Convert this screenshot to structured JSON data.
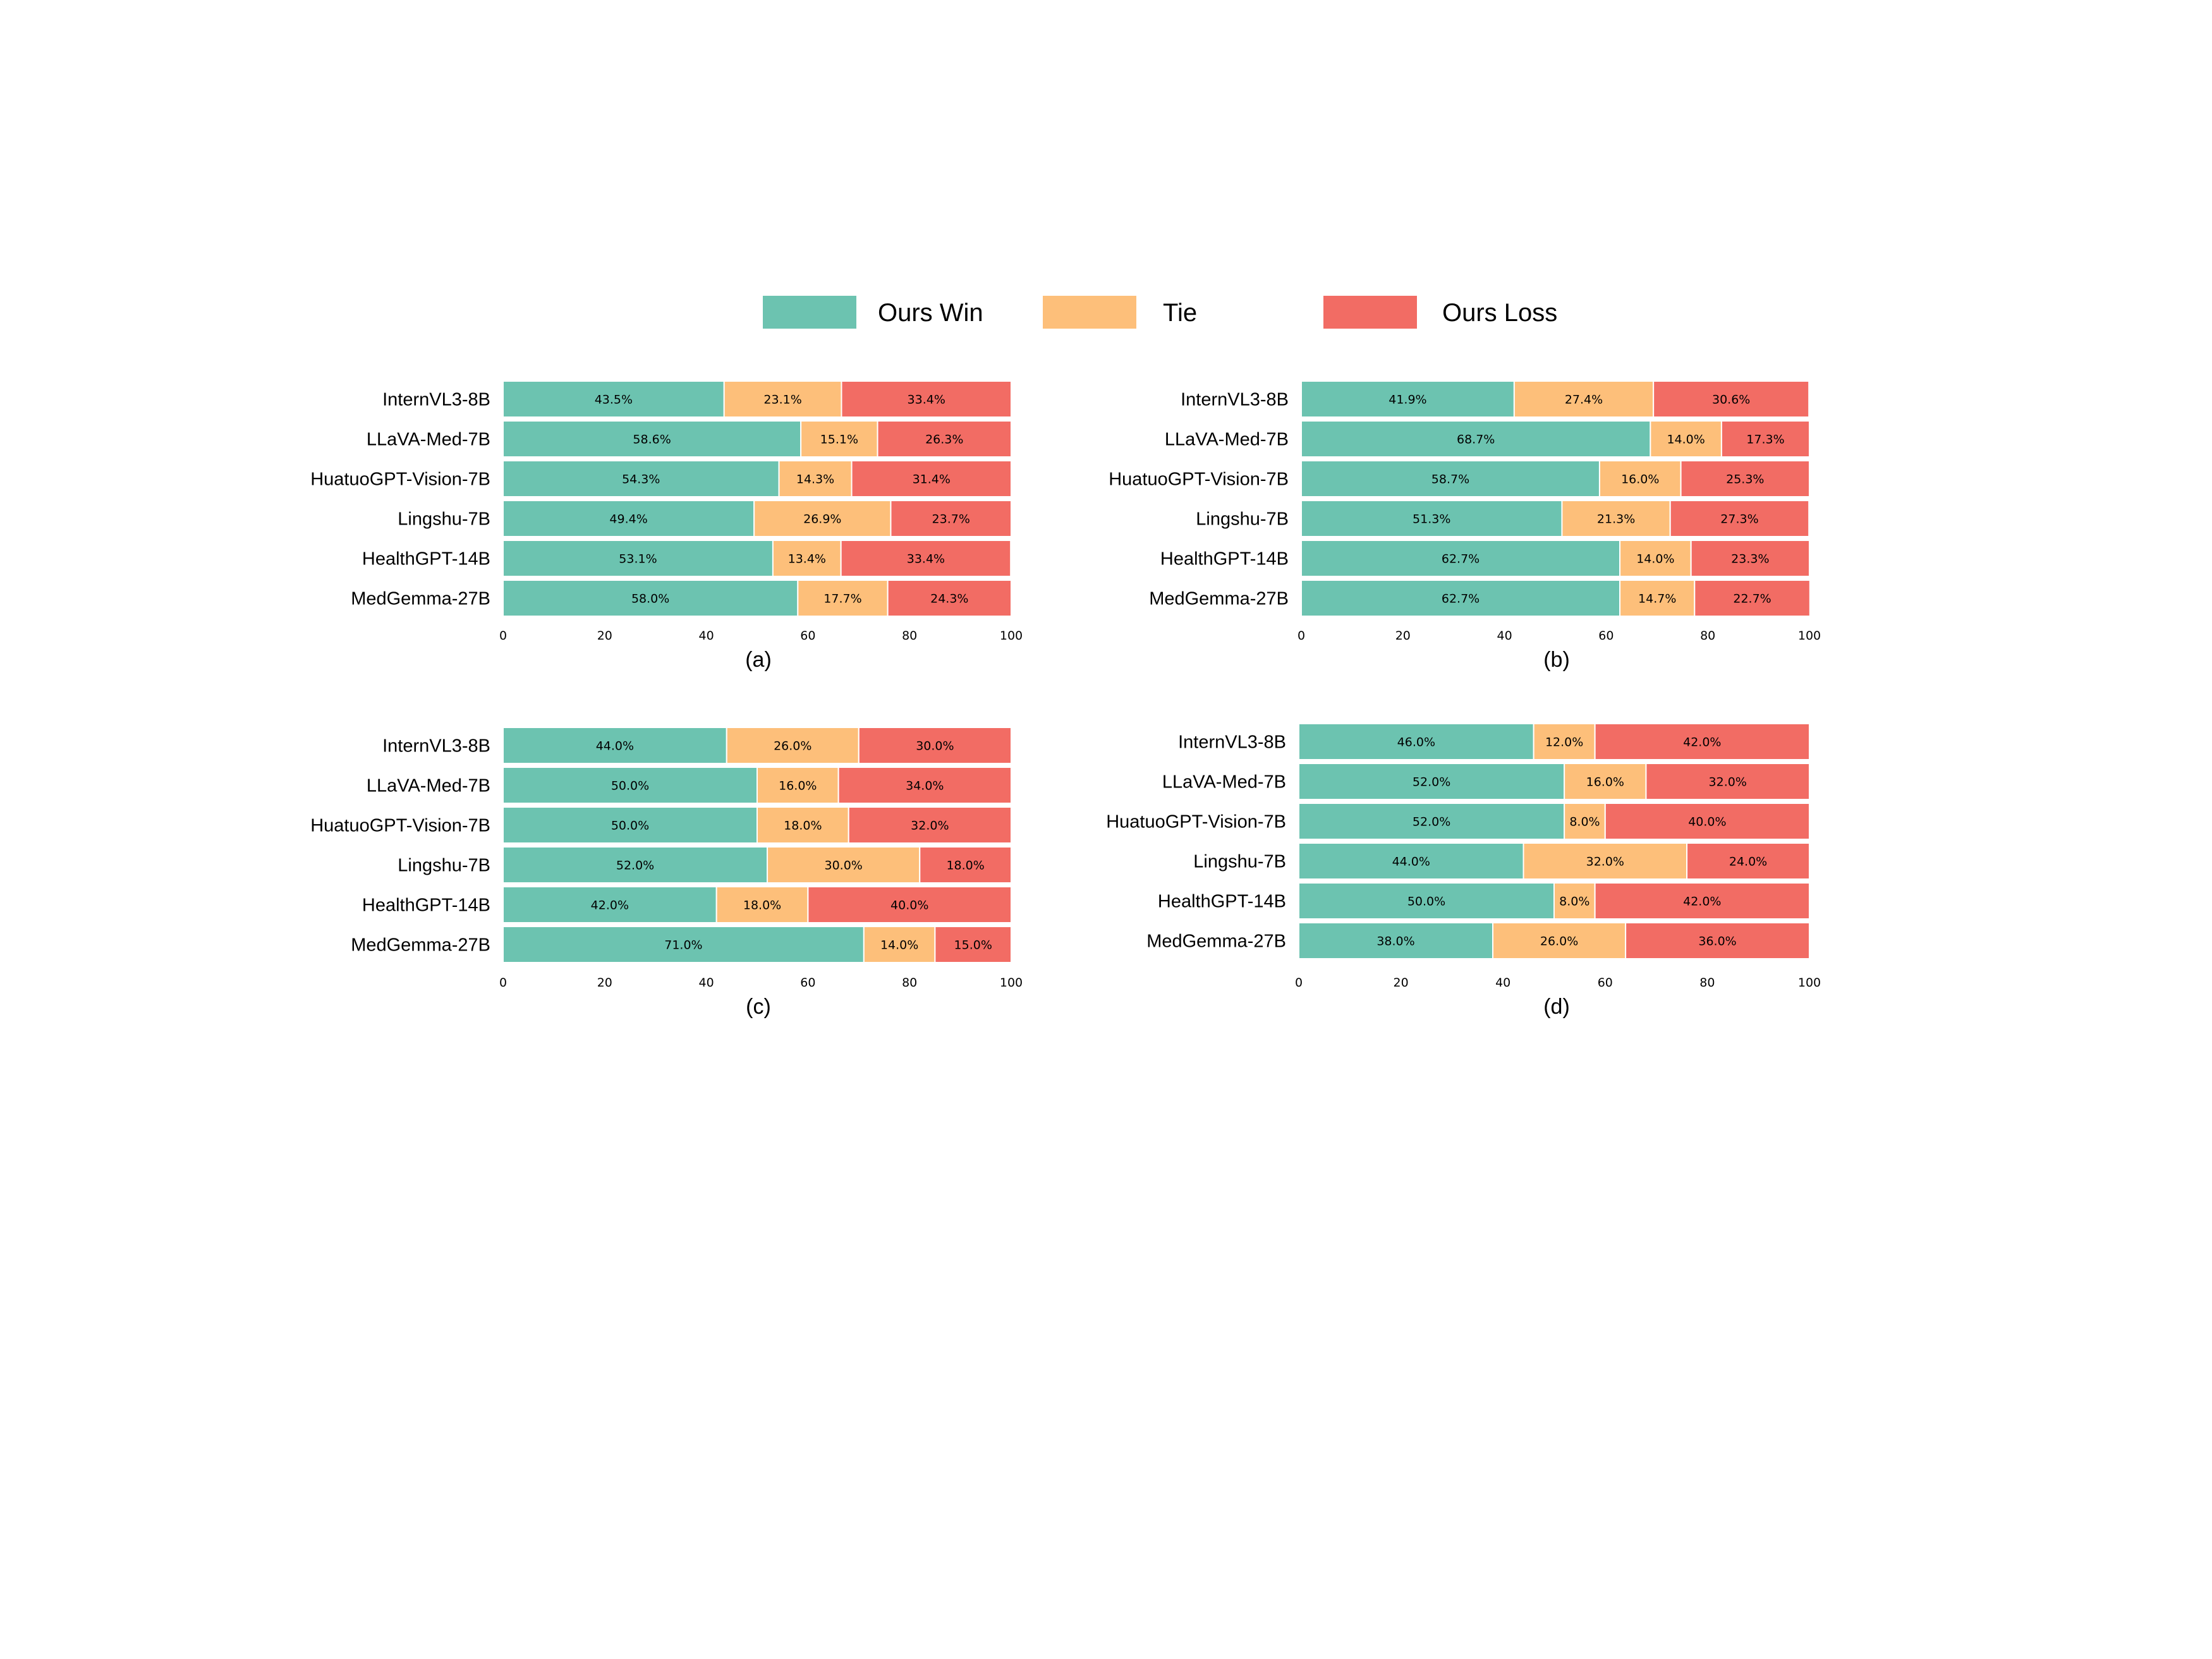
{
  "legend": {
    "items": [
      {
        "label": "Ours Win",
        "color": "#6cc3b0"
      },
      {
        "label": "Tie",
        "color": "#fdbf7a"
      },
      {
        "label": "Ours Loss",
        "color": "#f26c64"
      }
    ]
  },
  "chart_data": [
    {
      "type": "bar",
      "orientation": "horizontal",
      "stacked": true,
      "caption": "(a)",
      "categories": [
        "InternVL3-8B",
        "LLaVA-Med-7B",
        "HuatuoGPT-Vision-7B",
        "Lingshu-7B",
        "HealthGPT-14B",
        "MedGemma-27B"
      ],
      "series": [
        {
          "name": "Ours Win",
          "values": [
            43.5,
            58.6,
            54.3,
            49.4,
            53.1,
            58.0
          ]
        },
        {
          "name": "Tie",
          "values": [
            23.1,
            15.1,
            14.3,
            26.9,
            13.4,
            17.7
          ]
        },
        {
          "name": "Ours Loss",
          "values": [
            33.4,
            26.3,
            31.4,
            23.7,
            33.4,
            24.3
          ]
        }
      ],
      "xlim": [
        0,
        100
      ],
      "xticks": [
        "0",
        "20",
        "40",
        "60",
        "80",
        "100"
      ],
      "grid": false
    },
    {
      "type": "bar",
      "orientation": "horizontal",
      "stacked": true,
      "caption": "(b)",
      "categories": [
        "InternVL3-8B",
        "LLaVA-Med-7B",
        "HuatuoGPT-Vision-7B",
        "Lingshu-7B",
        "HealthGPT-14B",
        "MedGemma-27B"
      ],
      "series": [
        {
          "name": "Ours Win",
          "values": [
            41.9,
            68.7,
            58.7,
            51.3,
            62.7,
            62.7
          ]
        },
        {
          "name": "Tie",
          "values": [
            27.4,
            14.0,
            16.0,
            21.3,
            14.0,
            14.7
          ]
        },
        {
          "name": "Ours Loss",
          "values": [
            30.6,
            17.3,
            25.3,
            27.3,
            23.3,
            22.7
          ]
        }
      ],
      "xlim": [
        0,
        100
      ],
      "xticks": [
        "0",
        "20",
        "40",
        "60",
        "80",
        "100"
      ],
      "grid": false
    },
    {
      "type": "bar",
      "orientation": "horizontal",
      "stacked": true,
      "caption": "(c)",
      "categories": [
        "InternVL3-8B",
        "LLaVA-Med-7B",
        "HuatuoGPT-Vision-7B",
        "Lingshu-7B",
        "HealthGPT-14B",
        "MedGemma-27B"
      ],
      "series": [
        {
          "name": "Ours Win",
          "values": [
            44.0,
            50.0,
            50.0,
            52.0,
            42.0,
            71.0
          ]
        },
        {
          "name": "Tie",
          "values": [
            26.0,
            16.0,
            18.0,
            30.0,
            18.0,
            14.0
          ]
        },
        {
          "name": "Ours Loss",
          "values": [
            30.0,
            34.0,
            32.0,
            18.0,
            40.0,
            15.0
          ]
        }
      ],
      "xlim": [
        0,
        100
      ],
      "xticks": [
        "0",
        "20",
        "40",
        "60",
        "80",
        "100"
      ],
      "grid": false
    },
    {
      "type": "bar",
      "orientation": "horizontal",
      "stacked": true,
      "caption": "(d)",
      "categories": [
        "InternVL3-8B",
        "LLaVA-Med-7B",
        "HuatuoGPT-Vision-7B",
        "Lingshu-7B",
        "HealthGPT-14B",
        "MedGemma-27B"
      ],
      "series": [
        {
          "name": "Ours Win",
          "values": [
            46.0,
            52.0,
            52.0,
            44.0,
            50.0,
            38.0
          ]
        },
        {
          "name": "Tie",
          "values": [
            12.0,
            16.0,
            8.0,
            32.0,
            8.0,
            26.0
          ]
        },
        {
          "name": "Ours Loss",
          "values": [
            42.0,
            32.0,
            40.0,
            24.0,
            42.0,
            36.0
          ]
        }
      ],
      "xlim": [
        0,
        100
      ],
      "xticks": [
        "0",
        "20",
        "40",
        "60",
        "80",
        "100"
      ],
      "grid": false
    }
  ]
}
